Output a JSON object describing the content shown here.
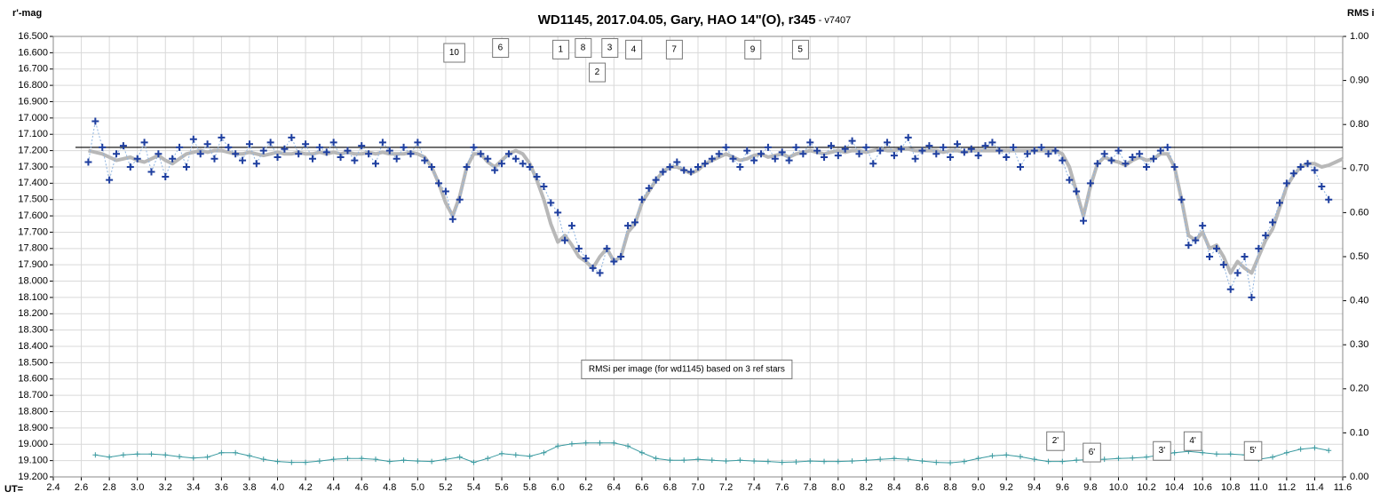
{
  "chart_data": {
    "type": "scatter",
    "title": "WD1145, 2017.04.05,  Gary, HAO 14\"(O), r345",
    "version": " - v7407",
    "y_label": "r'-mag",
    "y2_label": "RMS i",
    "x_label": "UT=",
    "grid": true,
    "hline": 17.18,
    "xlim": [
      2.4,
      11.6
    ],
    "ylim": [
      16.5,
      19.2
    ],
    "y2lim": [
      0,
      1
    ],
    "xticks": [
      2.4,
      2.6,
      2.8,
      {
        "value": 3,
        "label": "3.0"
      },
      3.2,
      3.4,
      3.6,
      3.8,
      {
        "value": 4,
        "label": "4.0"
      },
      4.2,
      4.4,
      4.6,
      4.8,
      {
        "value": 5,
        "label": "5.0"
      },
      5.2,
      5.4,
      5.6,
      5.8,
      {
        "value": 6,
        "label": "6.0"
      },
      6.2,
      6.4,
      6.6,
      6.8,
      {
        "value": 7,
        "label": "7.0"
      },
      7.2,
      7.4,
      7.6,
      7.8,
      {
        "value": 8,
        "label": "8.0"
      },
      8.2,
      8.4,
      8.6,
      8.8,
      {
        "value": 9,
        "label": "9.0"
      },
      9.2,
      9.4,
      9.6,
      9.8,
      {
        "value": 10,
        "label": "10.0"
      },
      10.2,
      10.4,
      10.6,
      10.8,
      {
        "value": 11,
        "label": "11.0"
      },
      11.2,
      11.4,
      11.6
    ],
    "yticks": [
      {
        "value": 16.5,
        "label": "16.500"
      },
      {
        "value": 16.6,
        "label": "16.600"
      },
      {
        "value": 16.7,
        "label": "16.700"
      },
      {
        "value": 16.8,
        "label": "16.800"
      },
      {
        "value": 16.9,
        "label": "16.900"
      },
      {
        "value": 17,
        "label": "17.000"
      },
      {
        "value": 17.1,
        "label": "17.100"
      },
      {
        "value": 17.2,
        "label": "17.200"
      },
      {
        "value": 17.3,
        "label": "17.300"
      },
      {
        "value": 17.4,
        "label": "17.400"
      },
      {
        "value": 17.5,
        "label": "17.500"
      },
      {
        "value": 17.6,
        "label": "17.600"
      },
      {
        "value": 17.7,
        "label": "17.700"
      },
      {
        "value": 17.8,
        "label": "17.800"
      },
      {
        "value": 17.9,
        "label": "17.900"
      },
      {
        "value": 18,
        "label": "18.000"
      },
      {
        "value": 18.1,
        "label": "18.100"
      },
      {
        "value": 18.2,
        "label": "18.200"
      },
      {
        "value": 18.3,
        "label": "18.300"
      },
      {
        "value": 18.4,
        "label": "18.400"
      },
      {
        "value": 18.5,
        "label": "18.500"
      },
      {
        "value": 18.6,
        "label": "18.600"
      },
      {
        "value": 18.7,
        "label": "18.700"
      },
      {
        "value": 18.8,
        "label": "18.800"
      },
      {
        "value": 18.9,
        "label": "18.900"
      },
      {
        "value": 19,
        "label": "19.000"
      },
      {
        "value": 19.1,
        "label": "19.100"
      },
      {
        "value": 19.2,
        "label": "19.200"
      }
    ],
    "y2ticks": [
      {
        "value": 1,
        "label": "1.00"
      },
      {
        "value": 0.9,
        "label": "0.90"
      },
      {
        "value": 0.8,
        "label": "0.80"
      },
      {
        "value": 0.7,
        "label": "0.70"
      },
      {
        "value": 0.6,
        "label": "0.60"
      },
      {
        "value": 0.5,
        "label": "0.50"
      },
      {
        "value": 0.4,
        "label": "0.40"
      },
      {
        "value": 0.3,
        "label": "0.30"
      },
      {
        "value": 0.2,
        "label": "0.20"
      },
      {
        "value": 0.1,
        "label": "0.10"
      },
      {
        "value": 0,
        "label": "0.00"
      }
    ],
    "x": [
      2.65,
      2.7,
      2.75,
      2.8,
      2.85,
      2.9,
      2.95,
      3.0,
      3.05,
      3.1,
      3.15,
      3.2,
      3.25,
      3.3,
      3.35,
      3.4,
      3.45,
      3.5,
      3.55,
      3.6,
      3.65,
      3.7,
      3.75,
      3.8,
      3.85,
      3.9,
      3.95,
      4.0,
      4.05,
      4.1,
      4.15,
      4.2,
      4.25,
      4.3,
      4.35,
      4.4,
      4.45,
      4.5,
      4.55,
      4.6,
      4.65,
      4.7,
      4.75,
      4.8,
      4.85,
      4.9,
      4.95,
      5.0,
      5.05,
      5.1,
      5.15,
      5.2,
      5.25,
      5.3,
      5.35,
      5.4,
      5.45,
      5.5,
      5.55,
      5.6,
      5.65,
      5.7,
      5.75,
      5.8,
      5.85,
      5.9,
      5.95,
      6.0,
      6.05,
      6.1,
      6.15,
      6.2,
      6.25,
      6.3,
      6.35,
      6.4,
      6.45,
      6.5,
      6.55,
      6.6,
      6.65,
      6.7,
      6.75,
      6.8,
      6.85,
      6.9,
      6.95,
      7.0,
      7.05,
      7.1,
      7.15,
      7.2,
      7.25,
      7.3,
      7.35,
      7.4,
      7.45,
      7.5,
      7.55,
      7.6,
      7.65,
      7.7,
      7.75,
      7.8,
      7.85,
      7.9,
      7.95,
      8.0,
      8.05,
      8.1,
      8.15,
      8.2,
      8.25,
      8.3,
      8.35,
      8.4,
      8.45,
      8.5,
      8.55,
      8.6,
      8.65,
      8.7,
      8.75,
      8.8,
      8.85,
      8.9,
      8.95,
      9.0,
      9.05,
      9.1,
      9.15,
      9.2,
      9.25,
      9.3,
      9.35,
      9.4,
      9.45,
      9.5,
      9.55,
      9.6,
      9.65,
      9.7,
      9.75,
      9.8,
      9.85,
      9.9,
      9.95,
      10.0,
      10.05,
      10.1,
      10.15,
      10.2,
      10.25,
      10.3,
      10.35,
      10.4,
      10.45,
      10.5,
      10.55,
      10.6,
      10.65,
      10.7,
      10.75,
      10.8,
      10.85,
      10.9,
      10.95,
      11.0,
      11.05,
      11.1,
      11.15,
      11.2,
      11.25,
      11.3,
      11.35,
      11.4,
      11.45,
      11.5,
      11.55,
      11.6
    ],
    "series": [
      {
        "color": "#1f3f9f",
        "link_color": "#8fb4e0",
        "values": [
          17.27,
          17.02,
          17.18,
          17.38,
          17.22,
          17.17,
          17.3,
          17.25,
          17.15,
          17.33,
          17.22,
          17.36,
          17.25,
          17.18,
          17.3,
          17.13,
          17.22,
          17.16,
          17.25,
          17.12,
          17.18,
          17.22,
          17.26,
          17.16,
          17.28,
          17.2,
          17.15,
          17.24,
          17.19,
          17.12,
          17.22,
          17.16,
          17.25,
          17.18,
          17.21,
          17.15,
          17.24,
          17.2,
          17.26,
          17.17,
          17.22,
          17.28,
          17.15,
          17.2,
          17.25,
          17.18,
          17.22,
          17.15,
          17.26,
          17.3,
          17.4,
          17.45,
          17.62,
          17.5,
          17.3,
          17.18,
          17.22,
          17.25,
          17.32,
          17.28,
          17.22,
          17.25,
          17.28,
          17.3,
          17.36,
          17.42,
          17.52,
          17.58,
          17.75,
          17.66,
          17.8,
          17.86,
          17.92,
          17.95,
          17.8,
          17.88,
          17.85,
          17.66,
          17.64,
          17.5,
          17.43,
          17.38,
          17.33,
          17.3,
          17.27,
          17.32,
          17.33,
          17.3,
          17.28,
          17.25,
          17.22,
          17.18,
          17.25,
          17.3,
          17.2,
          17.26,
          17.22,
          17.18,
          17.25,
          17.21,
          17.26,
          17.18,
          17.22,
          17.15,
          17.2,
          17.24,
          17.17,
          17.23,
          17.19,
          17.14,
          17.22,
          17.18,
          17.28,
          17.2,
          17.15,
          17.23,
          17.19,
          17.12,
          17.25,
          17.2,
          17.17,
          17.22,
          17.18,
          17.24,
          17.16,
          17.21,
          17.19,
          17.23,
          17.17,
          17.15,
          17.2,
          17.24,
          17.18,
          17.3,
          17.22,
          17.2,
          17.18,
          17.22,
          17.2,
          17.26,
          17.38,
          17.45,
          17.63,
          17.4,
          17.28,
          17.22,
          17.26,
          17.2,
          17.28,
          17.24,
          17.22,
          17.3,
          17.25,
          17.2,
          17.18,
          17.3,
          17.5,
          17.78,
          17.75,
          17.66,
          17.85,
          17.8,
          17.9,
          18.05,
          17.95,
          17.85,
          18.1,
          17.8,
          17.72,
          17.64,
          17.52,
          17.4,
          17.34,
          17.3,
          17.28,
          17.32,
          17.42,
          17.5,
          null,
          null
        ]
      },
      {
        "color": "#b8b8b8",
        "values": [
          17.2,
          17.21,
          17.22,
          17.24,
          17.26,
          17.25,
          17.24,
          17.26,
          17.27,
          17.25,
          17.23,
          17.26,
          17.28,
          17.25,
          17.22,
          17.21,
          17.2,
          17.21,
          17.2,
          17.2,
          17.21,
          17.22,
          17.22,
          17.21,
          17.22,
          17.23,
          17.22,
          17.21,
          17.22,
          17.22,
          17.21,
          17.22,
          17.22,
          17.21,
          17.22,
          17.21,
          17.22,
          17.21,
          17.22,
          17.22,
          17.21,
          17.22,
          17.21,
          17.22,
          17.22,
          17.22,
          17.21,
          17.22,
          17.24,
          17.3,
          17.4,
          17.52,
          17.6,
          17.48,
          17.3,
          17.22,
          17.22,
          17.27,
          17.3,
          17.26,
          17.22,
          17.2,
          17.22,
          17.28,
          17.38,
          17.5,
          17.65,
          17.76,
          17.72,
          17.78,
          17.85,
          17.88,
          17.92,
          17.85,
          17.8,
          17.88,
          17.85,
          17.7,
          17.65,
          17.52,
          17.45,
          17.38,
          17.33,
          17.3,
          17.3,
          17.32,
          17.34,
          17.32,
          17.28,
          17.26,
          17.24,
          17.22,
          17.24,
          17.26,
          17.25,
          17.23,
          17.22,
          17.24,
          17.23,
          17.22,
          17.24,
          17.22,
          17.21,
          17.2,
          17.21,
          17.22,
          17.21,
          17.2,
          17.21,
          17.2,
          17.2,
          17.21,
          17.2,
          17.19,
          17.2,
          17.2,
          17.19,
          17.19,
          17.2,
          17.2,
          17.2,
          17.2,
          17.21,
          17.2,
          17.2,
          17.21,
          17.2,
          17.2,
          17.2,
          17.2,
          17.2,
          17.2,
          17.2,
          17.2,
          17.2,
          17.2,
          17.2,
          17.2,
          17.2,
          17.22,
          17.3,
          17.45,
          17.6,
          17.42,
          17.28,
          17.24,
          17.26,
          17.27,
          17.29,
          17.26,
          17.24,
          17.26,
          17.25,
          17.22,
          17.22,
          17.3,
          17.5,
          17.72,
          17.75,
          17.7,
          17.8,
          17.78,
          17.85,
          17.95,
          17.88,
          17.92,
          17.95,
          17.85,
          17.75,
          17.68,
          17.55,
          17.42,
          17.35,
          17.3,
          17.28,
          17.28,
          17.3,
          17.29,
          17.27,
          17.25
        ]
      },
      {
        "color": "#3a9aa0",
        "axis": "y2",
        "x": [
          2.7,
          2.8,
          2.9,
          3.0,
          3.1,
          3.2,
          3.3,
          3.4,
          3.5,
          3.6,
          3.7,
          3.8,
          3.9,
          4.0,
          4.1,
          4.2,
          4.3,
          4.4,
          4.5,
          4.6,
          4.7,
          4.8,
          4.9,
          5.0,
          5.1,
          5.2,
          5.3,
          5.4,
          5.5,
          5.6,
          5.7,
          5.8,
          5.9,
          6.0,
          6.1,
          6.2,
          6.3,
          6.4,
          6.5,
          6.6,
          6.7,
          6.8,
          6.9,
          7.0,
          7.1,
          7.2,
          7.3,
          7.4,
          7.5,
          7.6,
          7.7,
          7.8,
          7.9,
          8.0,
          8.1,
          8.2,
          8.3,
          8.4,
          8.5,
          8.6,
          8.7,
          8.8,
          8.9,
          9.0,
          9.1,
          9.2,
          9.3,
          9.4,
          9.5,
          9.6,
          9.7,
          9.8,
          9.9,
          10.0,
          10.1,
          10.2,
          10.3,
          10.4,
          10.5,
          10.6,
          10.7,
          10.8,
          10.9,
          11.0,
          11.1,
          11.2,
          11.3,
          11.4,
          11.5
        ],
        "values": [
          0.05,
          0.045,
          0.05,
          0.052,
          0.052,
          0.05,
          0.046,
          0.043,
          0.045,
          0.055,
          0.055,
          0.048,
          0.04,
          0.035,
          0.033,
          0.033,
          0.036,
          0.04,
          0.042,
          0.042,
          0.04,
          0.035,
          0.038,
          0.036,
          0.035,
          0.04,
          0.045,
          0.033,
          0.042,
          0.053,
          0.05,
          0.047,
          0.055,
          0.07,
          0.075,
          0.077,
          0.077,
          0.077,
          0.07,
          0.055,
          0.042,
          0.038,
          0.038,
          0.04,
          0.038,
          0.036,
          0.038,
          0.036,
          0.035,
          0.033,
          0.034,
          0.036,
          0.035,
          0.035,
          0.036,
          0.038,
          0.04,
          0.042,
          0.04,
          0.036,
          0.033,
          0.032,
          0.035,
          0.042,
          0.048,
          0.05,
          0.046,
          0.04,
          0.035,
          0.035,
          0.038,
          0.04,
          0.04,
          0.042,
          0.043,
          0.045,
          0.05,
          0.055,
          0.058,
          0.055,
          0.052,
          0.052,
          0.05,
          0.04,
          0.045,
          0.055,
          0.063,
          0.066,
          0.06
        ]
      }
    ],
    "annotations": [
      {
        "text": "10",
        "x": 5.26,
        "y": 16.6
      },
      {
        "text": "6",
        "x": 5.59,
        "y": 16.57
      },
      {
        "text": "1",
        "x": 6.02,
        "y": 16.58
      },
      {
        "text": "8",
        "x": 6.18,
        "y": 16.57
      },
      {
        "text": "3",
        "x": 6.37,
        "y": 16.57
      },
      {
        "text": "2",
        "x": 6.28,
        "y": 16.72
      },
      {
        "text": "4",
        "x": 6.54,
        "y": 16.58
      },
      {
        "text": "7",
        "x": 6.83,
        "y": 16.58
      },
      {
        "text": "9",
        "x": 7.39,
        "y": 16.58
      },
      {
        "text": "5",
        "x": 7.73,
        "y": 16.58
      },
      {
        "text": "RMSi per image (for wd1145) based on 3 ref stars",
        "x": 6.92,
        "y": 18.54
      },
      {
        "text": "2'",
        "x": 9.55,
        "y": 18.98
      },
      {
        "text": "6'",
        "x": 9.81,
        "y": 19.05
      },
      {
        "text": "3'",
        "x": 10.31,
        "y": 19.04
      },
      {
        "text": "4'",
        "x": 10.53,
        "y": 18.98
      },
      {
        "text": "5'",
        "x": 10.96,
        "y": 19.04
      }
    ]
  }
}
